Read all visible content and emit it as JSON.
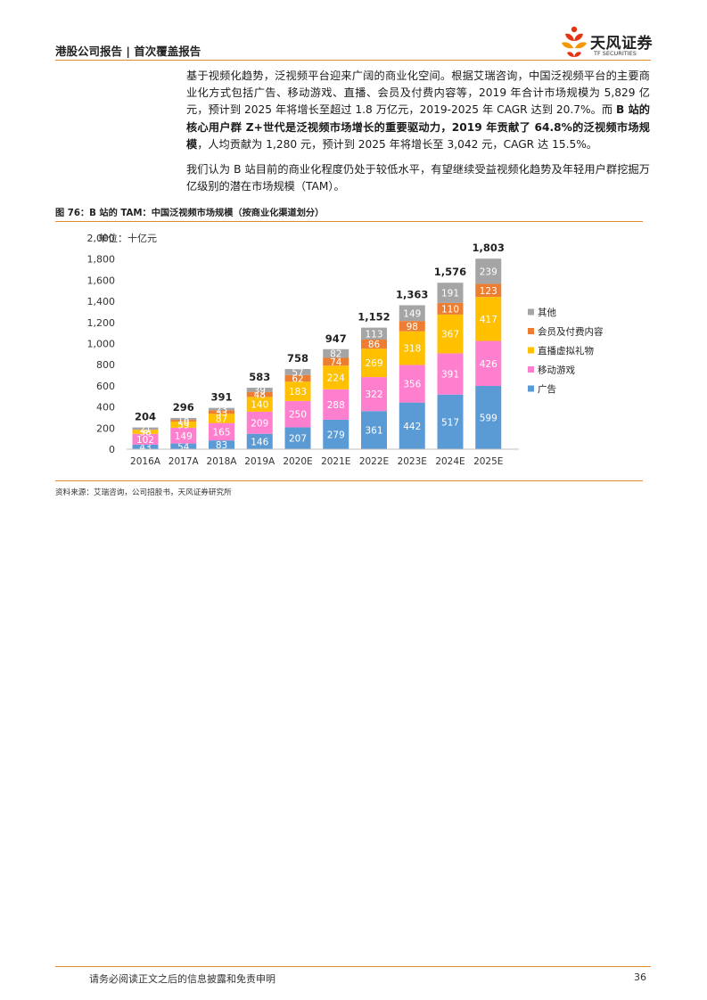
{
  "header": {
    "left_text": "港股公司报告 | 首次覆盖报告",
    "brand_name": "天风证券",
    "brand_en": "TF SECURITIES"
  },
  "body": {
    "para1_a": "基于视频化趋势，泛视频平台迎来广阔的商业化空间。根据艾瑞咨询，中国泛视频平台的主要商业化方式包括广告、移动游戏、直播、会员及付费内容等，2019 年合计市场规模为 5,829 亿元，预计到 2025 年将增长至超过 1.8 万亿元，2019-2025 年 CAGR 达到 20.7%。而 ",
    "para1_bold": "B 站的核心用户群 Z+世代是泛视频市场增长的重要驱动力，2019 年贡献了 64.8%的泛视频市场规模",
    "para1_c": "，人均贡献为 1,280 元，预计到 2025 年将增长至 3,042 元，CAGR 达 15.5%。",
    "para2": "我们认为 B 站目前的商业化程度仍处于较低水平，有望继续受益视频化趋势及年轻用户群挖掘万亿级别的潜在市场规模（TAM）。"
  },
  "figure": {
    "title": "图 76：B 站的 TAM：中国泛视频市场规模（按商业化渠道划分）",
    "source": "资料来源：艾瑞咨询，公司招股书，天风证券研究所"
  },
  "chart_data": {
    "type": "bar",
    "stacked": true,
    "unit_label": "单位：十亿元",
    "categories": [
      "2016A",
      "2017A",
      "2018A",
      "2019A",
      "2020E",
      "2021E",
      "2022E",
      "2023E",
      "2024E",
      "2025E"
    ],
    "ylim": [
      0,
      2000
    ],
    "yticks": [
      "0",
      "200",
      "400",
      "600",
      "800",
      "1,000",
      "1,200",
      "1,400",
      "1,600",
      "1,800",
      "2,000"
    ],
    "totals": [
      "204",
      "296",
      "391",
      "583",
      "758",
      "947",
      "1,152",
      "1,363",
      "1,576",
      "1,803"
    ],
    "series": [
      {
        "name": "广告",
        "color": "#5b9bd5",
        "values": [
          43,
          54,
          83,
          146,
          207,
          279,
          361,
          442,
          517,
          599
        ]
      },
      {
        "name": "移动游戏",
        "color": "#ff7fcf",
        "values": [
          102,
          149,
          165,
          209,
          250,
          288,
          322,
          356,
          391,
          426
        ]
      },
      {
        "name": "直播虚拟礼物",
        "color": "#ffc000",
        "values": [
          38,
          59,
          87,
          140,
          183,
          224,
          269,
          318,
          367,
          417
        ]
      },
      {
        "name": "会员及付费内容",
        "color": "#ed7d31",
        "values": [
          2,
          16,
          33,
          48,
          62,
          74,
          86,
          98,
          110,
          123
        ]
      },
      {
        "name": "其他",
        "color": "#a5a5a5",
        "values": [
          21,
          18,
          23,
          39,
          57,
          82,
          113,
          149,
          191,
          239
        ]
      }
    ],
    "legend_position": "right"
  },
  "footer": {
    "disclaimer": "请务必阅读正文之后的信息披露和免责申明",
    "page_number": "36"
  }
}
